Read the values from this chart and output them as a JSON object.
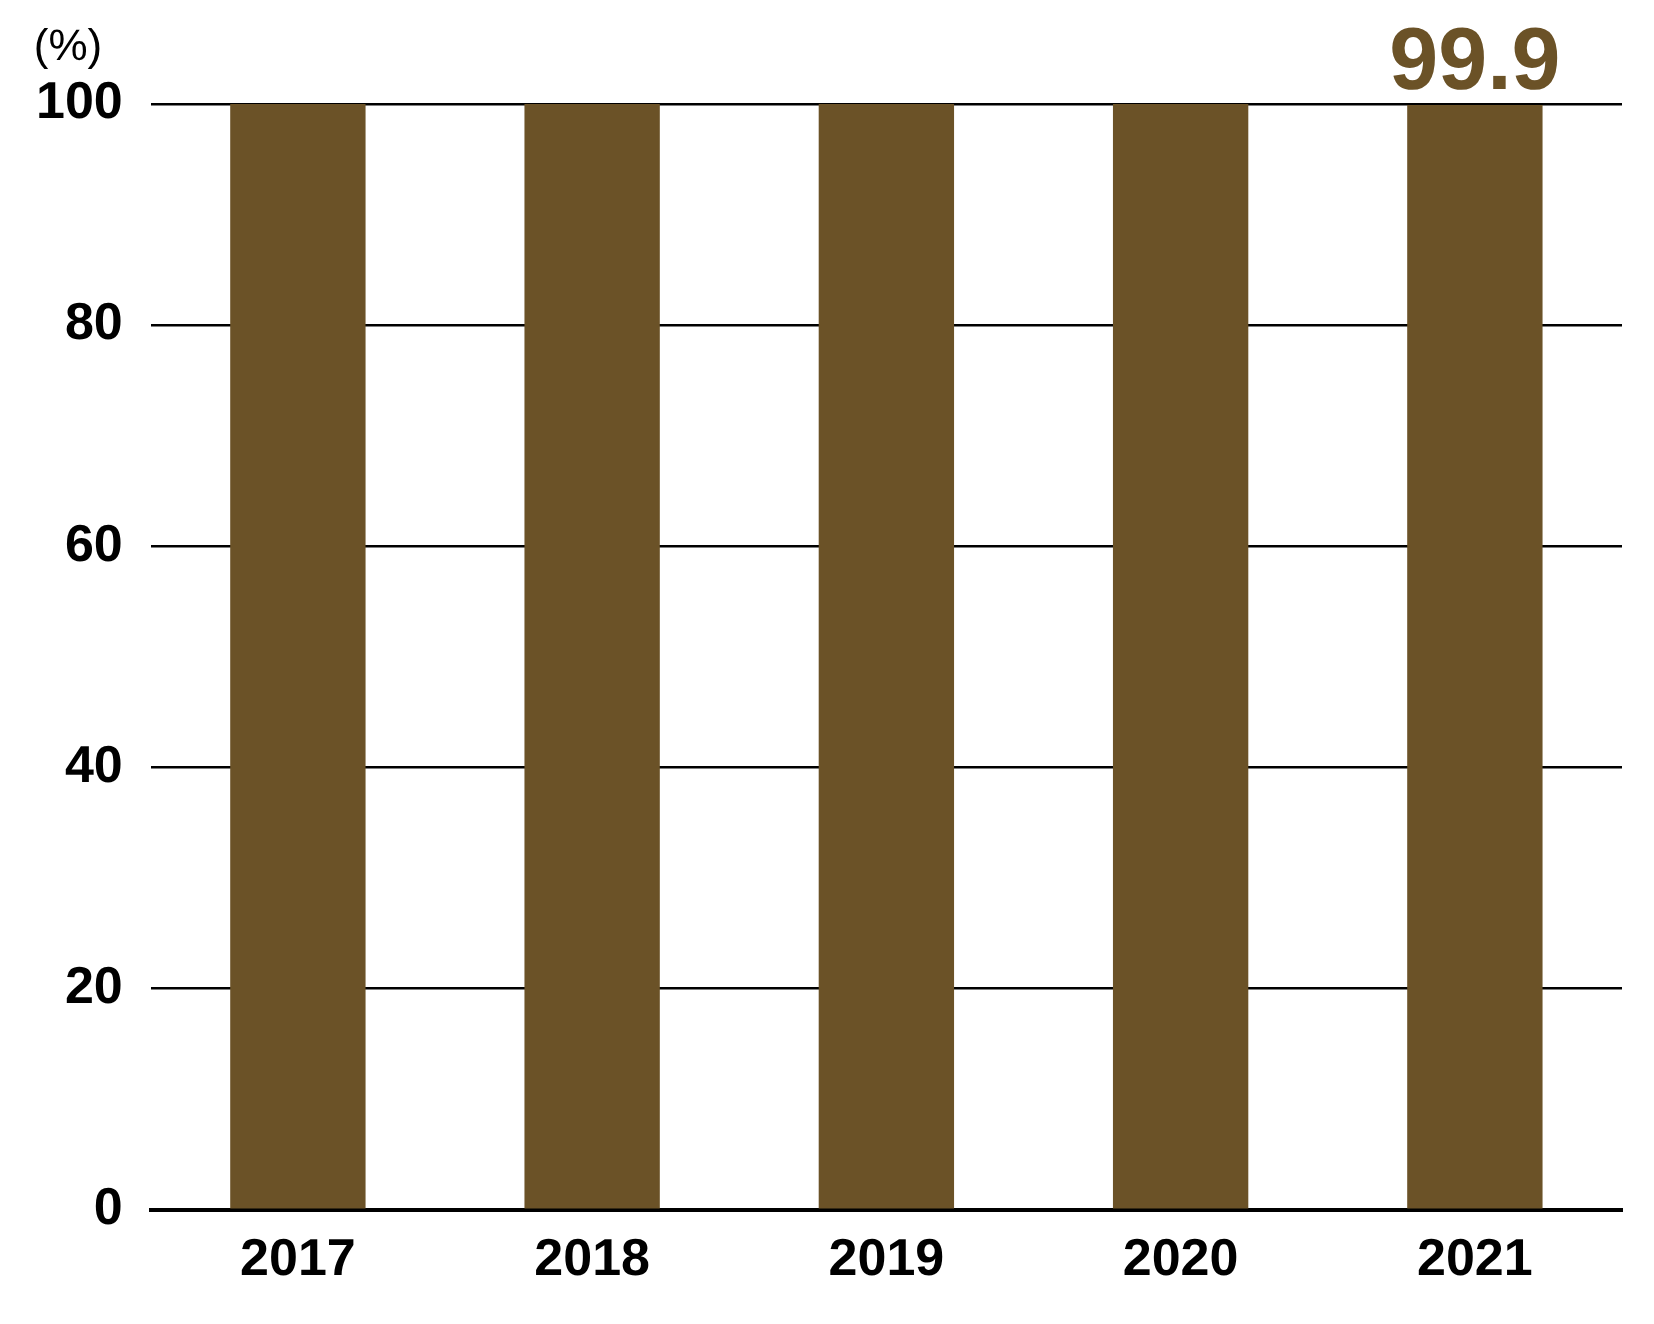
{
  "chart_data": {
    "type": "bar",
    "ylabel": "(%)",
    "categories": [
      "2017",
      "2018",
      "2019",
      "2020",
      "2021"
    ],
    "values": [
      100,
      100,
      100,
      100,
      99.9
    ],
    "color": "#6b5227",
    "value_labels": [
      null,
      null,
      null,
      null,
      "99.9"
    ],
    "ylim": [
      0,
      100
    ],
    "yticks": [
      0,
      20,
      40,
      60,
      80,
      100
    ],
    "grid": "y",
    "legend": false
  }
}
